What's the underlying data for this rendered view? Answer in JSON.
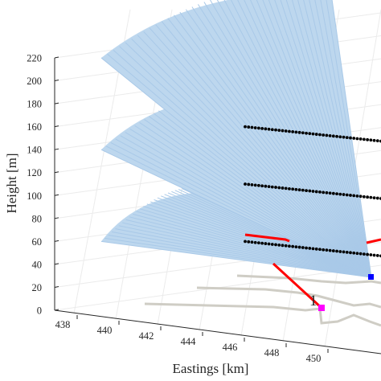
{
  "chart_data": {
    "type": "3d-line",
    "xlabel": "Eastings [km]",
    "ylabel": "Height [m]",
    "xticks": [
      "438",
      "440",
      "442",
      "444",
      "446",
      "448",
      "450"
    ],
    "yticks": [
      "0",
      "20",
      "40",
      "60",
      "80",
      "100",
      "120",
      "140",
      "160",
      "180",
      "200",
      "220"
    ],
    "zlim": [
      0,
      220
    ],
    "grid": true,
    "annotation": "1",
    "colors": {
      "fan": "#bdd7ee",
      "fan_edge": "#a9c9e8",
      "track": "#ff0000",
      "dotted_track": "#000000",
      "ground_path": "#cfcdc5",
      "start_marker": "#ff00ff",
      "end_marker": "#0000ff",
      "axis": "#262626",
      "grid": "#ebebeb"
    },
    "series": [
      {
        "kind": "beam-fan",
        "height_m": 60
      },
      {
        "kind": "beam-fan",
        "height_m": 140
      },
      {
        "kind": "beam-fan",
        "height_m": 220
      },
      {
        "kind": "dotted-track",
        "height_m": 60
      },
      {
        "kind": "dotted-track",
        "height_m": 110
      },
      {
        "kind": "dotted-track",
        "height_m": 160
      },
      {
        "kind": "red-track"
      },
      {
        "kind": "ground-path"
      }
    ]
  }
}
